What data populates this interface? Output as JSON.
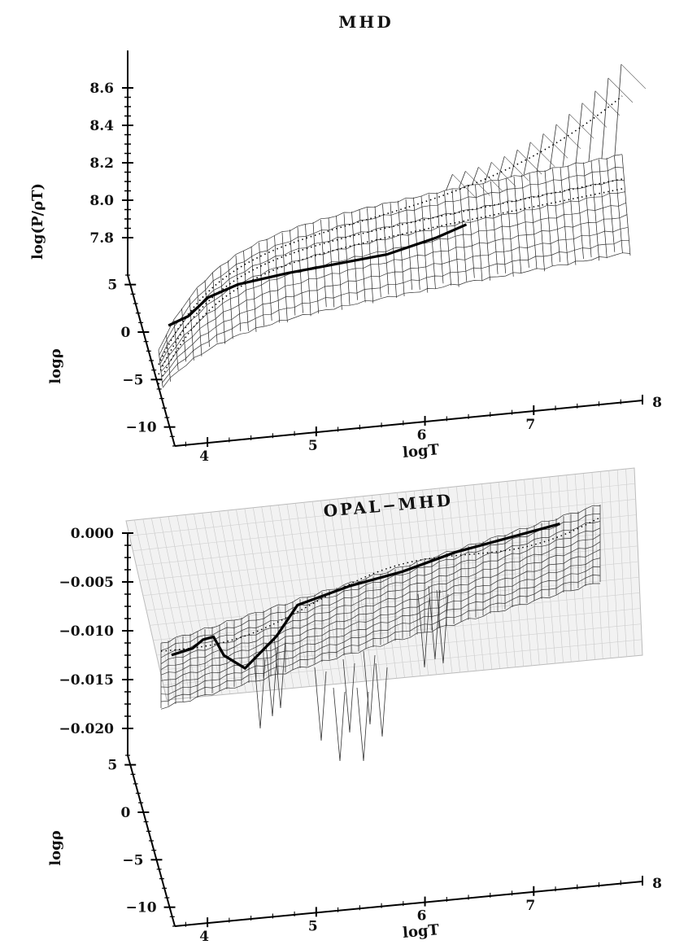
{
  "chart_data": [
    {
      "type": "surface",
      "title": "MHD",
      "xlabel": "logT",
      "ylabel": "logρ",
      "zlabel": "log(P/ρT)",
      "x_ticks": [
        "4",
        "5",
        "6",
        "7",
        "8"
      ],
      "y_ticks": [
        "5",
        "0",
        "−5",
        "−10"
      ],
      "z_ticks": [
        "7.8",
        "8.0",
        "8.2",
        "8.4",
        "8.6"
      ],
      "xlim": [
        3.7,
        8.0
      ],
      "ylim": [
        -12,
        6
      ],
      "zlim": [
        7.6,
        8.8
      ],
      "highlight_curve": {
        "logT": [
          3.8,
          4.0,
          4.2,
          4.5,
          5.0,
          5.5,
          6.0,
          6.5,
          6.8
        ],
        "value": [
          7.7,
          7.75,
          7.85,
          7.92,
          7.98,
          8.03,
          8.08,
          8.17,
          8.24
        ]
      }
    },
    {
      "type": "surface",
      "title": "OPAL−MHD",
      "xlabel": "logT",
      "ylabel": "logρ",
      "x_ticks": [
        "4",
        "5",
        "6",
        "7",
        "8"
      ],
      "y_ticks": [
        "5",
        "0",
        "−5",
        "−10"
      ],
      "z_ticks": [
        "0.000",
        "−0.005",
        "−0.010",
        "−0.015",
        "−0.020"
      ],
      "xlim": [
        3.7,
        8.0
      ],
      "ylim": [
        -12,
        6
      ],
      "zlim": [
        -0.022,
        0.001
      ],
      "highlight_curve": {
        "logT": [
          3.8,
          4.0,
          4.1,
          4.2,
          4.3,
          4.5,
          4.8,
          5.0,
          5.5,
          6.0,
          6.5,
          7.0,
          7.5
        ],
        "value": [
          -0.0105,
          -0.01,
          -0.0092,
          -0.009,
          -0.011,
          -0.0125,
          -0.0095,
          -0.0065,
          -0.005,
          -0.004,
          -0.0025,
          -0.0015,
          -0.0005
        ]
      }
    }
  ]
}
